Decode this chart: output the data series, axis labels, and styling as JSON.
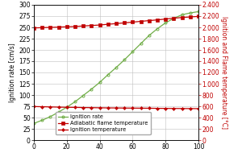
{
  "x": [
    0,
    5,
    10,
    15,
    20,
    25,
    30,
    35,
    40,
    45,
    50,
    55,
    60,
    65,
    70,
    75,
    80,
    85,
    90,
    95,
    100
  ],
  "ignition_rate": [
    37,
    44,
    52,
    62,
    73,
    85,
    99,
    113,
    128,
    145,
    161,
    178,
    196,
    214,
    232,
    247,
    260,
    270,
    278,
    282,
    285
  ],
  "flame_temp": [
    1990,
    1995,
    2000,
    2005,
    2010,
    2015,
    2025,
    2033,
    2042,
    2055,
    2067,
    2080,
    2093,
    2107,
    2120,
    2133,
    2148,
    2163,
    2175,
    2185,
    2195
  ],
  "ignition_temp": [
    595,
    592,
    588,
    585,
    582,
    580,
    577,
    575,
    573,
    571,
    570,
    568,
    567,
    566,
    565,
    563,
    562,
    561,
    560,
    559,
    558
  ],
  "left_ylim": [
    0,
    300
  ],
  "left_yticks": [
    0,
    25,
    50,
    75,
    100,
    125,
    150,
    175,
    200,
    225,
    250,
    275,
    300
  ],
  "right_ylim": [
    0,
    2400
  ],
  "right_yticks": [
    0,
    200,
    400,
    600,
    800,
    1000,
    1200,
    1400,
    1600,
    1800,
    2000,
    2200,
    2400
  ],
  "xlim": [
    0,
    100
  ],
  "xticks": [
    0,
    20,
    40,
    60,
    80,
    100
  ],
  "ylabel_left": "Ignition rate [cm/s]",
  "ylabel_right": "Ignition and Flame temperature [°C]",
  "legend_labels": [
    "Ignition rate",
    "Adiabatic flame temperature",
    "Ignition temperature"
  ],
  "line_color_green": "#70ad47",
  "line_color_red": "#c00000",
  "bg_color": "#ffffff",
  "grid_color": "#bfbfbf",
  "tick_fontsize": 5.5,
  "label_fontsize": 5.5,
  "legend_fontsize": 4.8
}
